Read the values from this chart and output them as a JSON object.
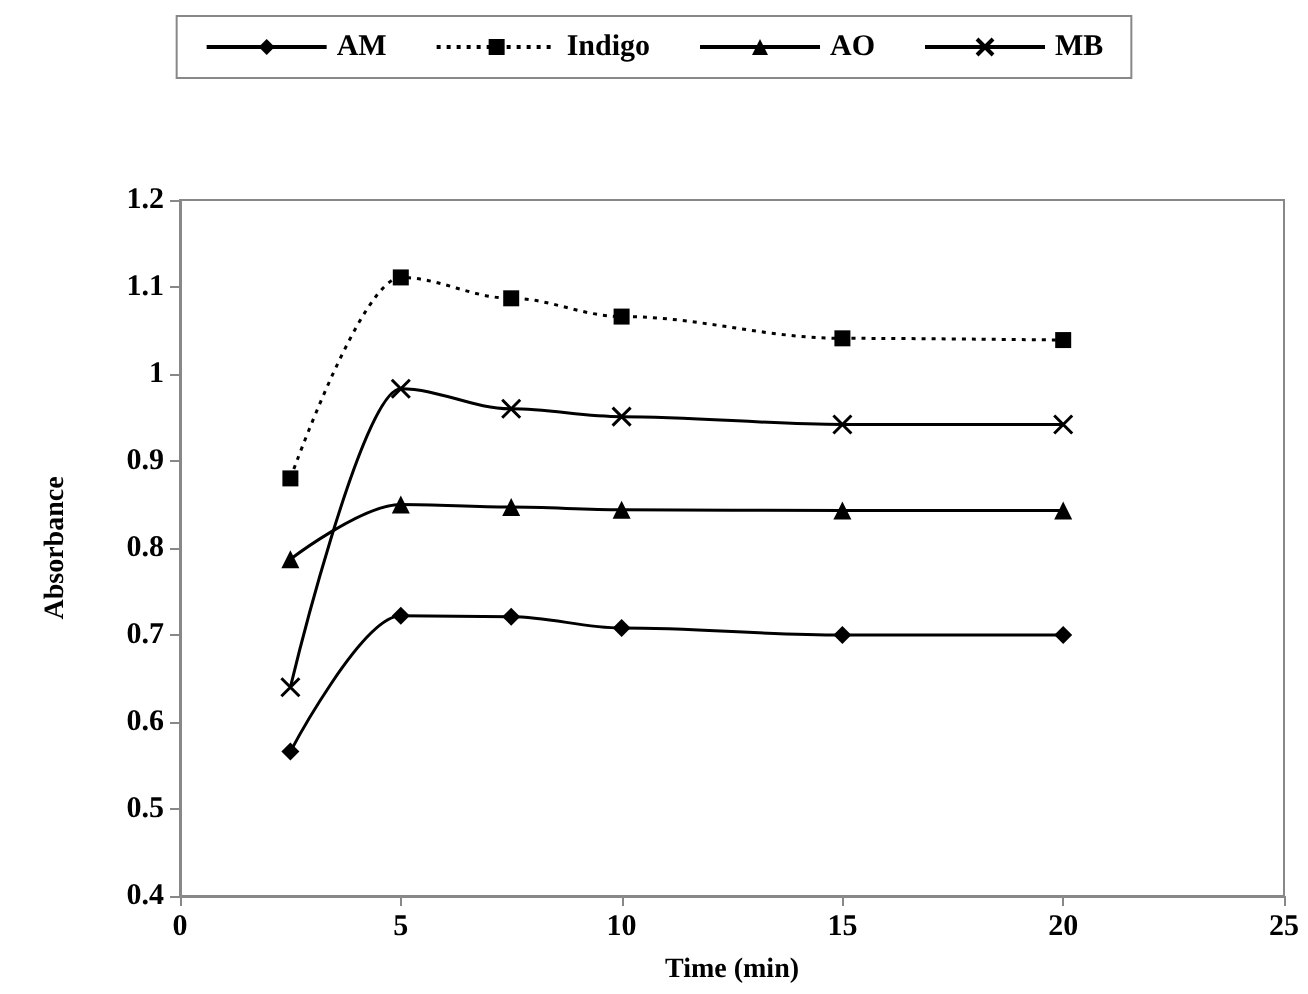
{
  "chart_data": {
    "type": "line",
    "xlabel": "Time (min)",
    "ylabel": "Absorbance",
    "x": [
      2.5,
      5,
      7.5,
      10,
      15,
      20
    ],
    "xlim": [
      0,
      25
    ],
    "xticks": [
      0,
      5,
      10,
      15,
      20,
      25
    ],
    "ylim": [
      0.4,
      1.2
    ],
    "yticks": [
      0.4,
      0.5,
      0.6,
      0.7,
      0.8,
      0.9,
      1,
      1.1,
      1.2
    ],
    "grid": false,
    "legend": "top",
    "series": [
      {
        "name": "AM",
        "color": "#000000",
        "marker": "diamond",
        "line_style": "solid",
        "values": [
          0.566,
          0.722,
          0.721,
          0.708,
          0.7,
          0.7
        ]
      },
      {
        "name": "Indigo",
        "color": "#000000",
        "marker": "square",
        "line_style": "dotted",
        "values": [
          0.88,
          1.111,
          1.087,
          1.066,
          1.041,
          1.039
        ]
      },
      {
        "name": "AO",
        "color": "#000000",
        "marker": "triangle",
        "line_style": "solid",
        "values": [
          0.787,
          0.85,
          0.847,
          0.844,
          0.843,
          0.843
        ]
      },
      {
        "name": "MB",
        "color": "#000000",
        "marker": "cross",
        "line_style": "solid",
        "values": [
          0.64,
          0.983,
          0.96,
          0.951,
          0.942,
          0.942
        ]
      }
    ]
  }
}
